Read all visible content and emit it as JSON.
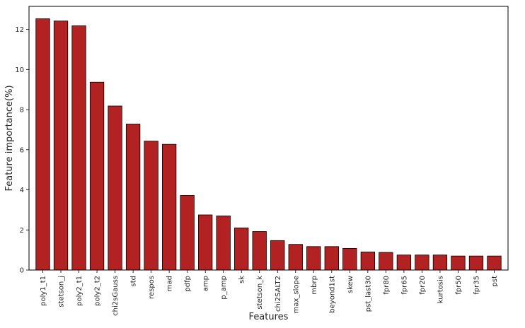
{
  "chart_data": {
    "type": "bar",
    "xlabel": "Features",
    "ylabel": "Feature importance(%)",
    "ylim": [
      0,
      13.15
    ],
    "yticks": [
      0,
      2,
      4,
      6,
      8,
      10,
      12
    ],
    "grid": false,
    "bar_color": "#b22222",
    "edge_color": "#000000",
    "categories": [
      "poly1_t1",
      "stetson_j",
      "poly2_t1",
      "poly2_t2",
      "chi2sGauss",
      "std",
      "respos",
      "mad",
      "pdfp",
      "amp",
      "p_amp",
      "sk",
      "stetson_k",
      "chi2SALT2",
      "max_slope",
      "mbrp",
      "beyond1st",
      "skew",
      "pst_last30",
      "fpr80",
      "fpr65",
      "fpr20",
      "kurtosis",
      "fpr50",
      "fpr35",
      "pst"
    ],
    "values": [
      12.53,
      12.42,
      12.18,
      9.37,
      8.18,
      7.28,
      6.43,
      6.27,
      3.72,
      2.75,
      2.7,
      2.1,
      1.92,
      1.47,
      1.28,
      1.17,
      1.17,
      1.08,
      0.9,
      0.88,
      0.75,
      0.75,
      0.75,
      0.7,
      0.7,
      0.7
    ]
  }
}
